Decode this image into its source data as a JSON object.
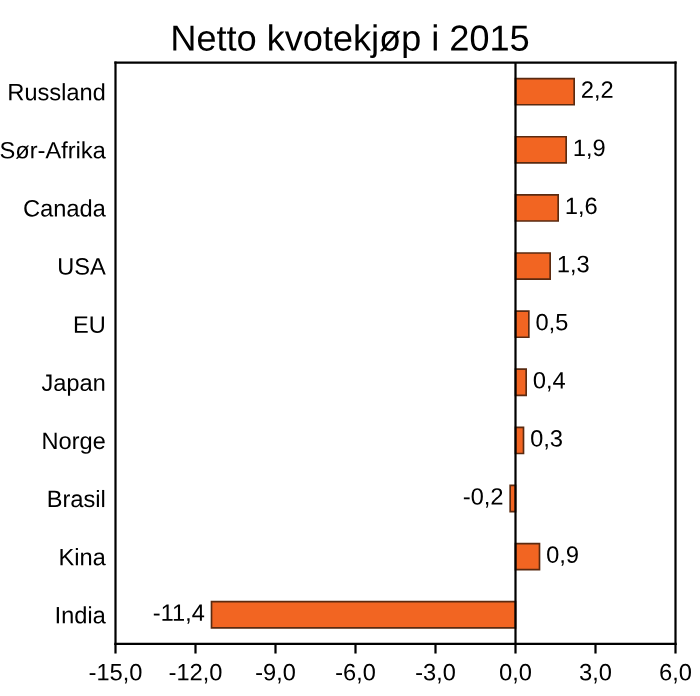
{
  "chart_data": {
    "type": "bar",
    "orientation": "horizontal",
    "title": "Netto kvotekjøp i 2015",
    "categories": [
      "Russland",
      "Sør-Afrika",
      "Canada",
      "USA",
      "EU",
      "Japan",
      "Norge",
      "Brasil",
      "Kina",
      "India"
    ],
    "values": [
      2.2,
      1.9,
      1.6,
      1.3,
      0.5,
      0.4,
      0.3,
      -0.2,
      0.9,
      -11.4
    ],
    "value_labels": [
      "2,2",
      "1,9",
      "1,6",
      "1,3",
      "0,5",
      "0,4",
      "0,3",
      "-0,2",
      "0,9",
      "-11,4"
    ],
    "color": "#f26522",
    "xlim": [
      -15,
      6
    ],
    "xticks": [
      {
        "value": -15,
        "label": "-15,0"
      },
      {
        "value": -12,
        "label": "-12,0"
      },
      {
        "value": -9,
        "label": "-9,0"
      },
      {
        "value": -6,
        "label": "-6,0"
      },
      {
        "value": -3,
        "label": "-3,0"
      },
      {
        "value": 0,
        "label": "0,0"
      },
      {
        "value": 3,
        "label": "3,0"
      },
      {
        "value": 6,
        "label": "6,0"
      }
    ],
    "ref_lines": [
      {
        "axis": "x",
        "value": 0,
        "color": "#000000"
      }
    ],
    "grid": false
  }
}
